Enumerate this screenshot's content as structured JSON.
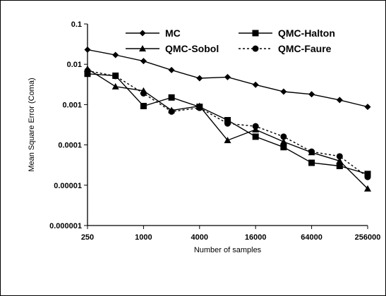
{
  "chart_data": {
    "type": "line",
    "xscale": "log",
    "yscale": "log",
    "xlabel": "Number of samples",
    "ylabel": "Mean Square Error (Coma)",
    "xlim": [
      250,
      256000
    ],
    "ylim": [
      1e-06,
      0.1
    ],
    "xticks": [
      250,
      1000,
      4000,
      16000,
      64000,
      256000
    ],
    "xtick_labels": [
      "250",
      "1000",
      "4000",
      "16000",
      "64000",
      "256000"
    ],
    "yticks": [
      1e-06,
      1e-05,
      0.0001,
      0.001,
      0.01,
      0.1
    ],
    "ytick_labels": [
      "0.000001",
      "0.00001",
      "0.0001",
      "0.001",
      "0.01",
      "0.1"
    ],
    "grid": false,
    "legend_position": "top-right",
    "x": [
      250,
      500,
      1000,
      2000,
      4000,
      8000,
      16000,
      32000,
      64000,
      128000,
      256000
    ],
    "series": [
      {
        "name": "MC",
        "marker": "diamond",
        "dash": "solid",
        "values": [
          0.023,
          0.017,
          0.012,
          0.0072,
          0.0045,
          0.0048,
          0.0031,
          0.0021,
          0.0018,
          0.0013,
          0.00088
        ]
      },
      {
        "name": "QMC-Halton",
        "marker": "square",
        "dash": "solid",
        "values": [
          0.0058,
          0.0052,
          0.00092,
          0.0015,
          0.00088,
          0.00041,
          0.00016,
          8.8e-05,
          3.6e-05,
          3e-05,
          1.9e-05
        ]
      },
      {
        "name": "QMC-Sobol",
        "marker": "triangle",
        "dash": "solid",
        "values": [
          0.0077,
          0.0028,
          0.0022,
          0.00072,
          0.00092,
          0.00013,
          0.00024,
          0.00012,
          6.5e-05,
          4e-05,
          8.2e-06
        ]
      },
      {
        "name": "QMC-Faure",
        "marker": "circle",
        "dash": "dashed",
        "values": [
          0.0069,
          0.0051,
          0.0019,
          0.00067,
          0.00083,
          0.00034,
          0.00029,
          0.00016,
          6.8e-05,
          5.2e-05,
          1.6e-05
        ]
      }
    ]
  }
}
